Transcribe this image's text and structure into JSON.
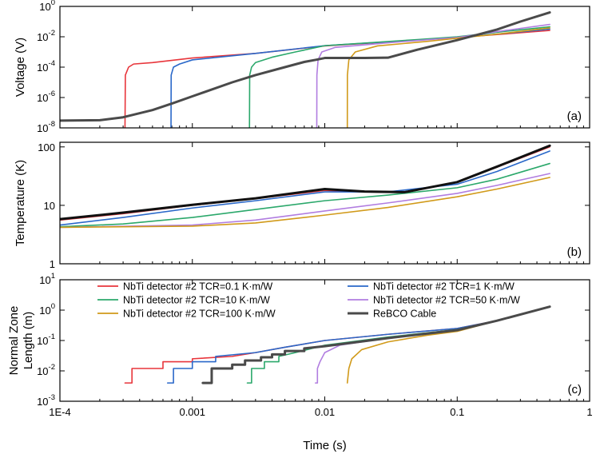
{
  "chart_data": [
    {
      "type": "line",
      "panel_tag": "(a)",
      "ylabel": "Voltage (V)",
      "xscale": "log",
      "yscale": "log",
      "xlim": [
        0.0001,
        1
      ],
      "ylim": [
        1e-08,
        1
      ],
      "yticks": [
        {
          "base": "10",
          "exp": "0"
        },
        {
          "base": "10",
          "exp": "-2"
        },
        {
          "base": "10",
          "exp": "-4"
        },
        {
          "base": "10",
          "exp": "-6"
        },
        {
          "base": "10",
          "exp": "-8"
        }
      ],
      "series": [
        {
          "name": "NbTi detector #2 TCR=0.1 K·m/W",
          "color": "#e8353b",
          "points": [
            [
              0.00031,
              1e-08
            ],
            [
              0.000312,
              3e-05
            ],
            [
              0.00033,
              0.0001
            ],
            [
              0.00036,
              0.00016
            ],
            [
              0.0005,
              0.0002
            ],
            [
              0.001,
              0.0004
            ],
            [
              0.003,
              0.0008
            ],
            [
              0.01,
              0.0025
            ],
            [
              0.05,
              0.006
            ],
            [
              0.1,
              0.009
            ],
            [
              0.2,
              0.014
            ],
            [
              0.5,
              0.026
            ]
          ]
        },
        {
          "name": "NbTi detector #2 TCR=1 K·m/W",
          "color": "#2a68c9",
          "points": [
            [
              0.00069,
              1e-08
            ],
            [
              0.000692,
              3e-05
            ],
            [
              0.00072,
              0.0001
            ],
            [
              0.0008,
              0.00016
            ],
            [
              0.001,
              0.0003
            ],
            [
              0.003,
              0.0008
            ],
            [
              0.01,
              0.0026
            ],
            [
              0.05,
              0.0062
            ],
            [
              0.1,
              0.009
            ],
            [
              0.2,
              0.015
            ],
            [
              0.5,
              0.032
            ]
          ]
        },
        {
          "name": "NbTi detector #2 TCR=10 K·m/W",
          "color": "#2ba86b",
          "points": [
            [
              0.0027,
              1e-08
            ],
            [
              0.00271,
              3e-05
            ],
            [
              0.0028,
              0.0001
            ],
            [
              0.003,
              0.0002
            ],
            [
              0.004,
              0.00045
            ],
            [
              0.006,
              0.001
            ],
            [
              0.01,
              0.0026
            ],
            [
              0.05,
              0.0065
            ],
            [
              0.1,
              0.01
            ],
            [
              0.2,
              0.02
            ],
            [
              0.5,
              0.045
            ]
          ]
        },
        {
          "name": "NbTi detector #2 TCR=50 K·m/W",
          "color": "#b17de0",
          "points": [
            [
              0.0087,
              1e-08
            ],
            [
              0.00872,
              3e-05
            ],
            [
              0.0089,
              0.0003
            ],
            [
              0.0095,
              0.001
            ],
            [
              0.012,
              0.002
            ],
            [
              0.03,
              0.004
            ],
            [
              0.1,
              0.009
            ],
            [
              0.2,
              0.022
            ],
            [
              0.5,
              0.065
            ]
          ]
        },
        {
          "name": "NbTi detector #2 TCR=100 K·m/W",
          "color": "#d19a1a",
          "points": [
            [
              0.0148,
              1e-08
            ],
            [
              0.01482,
              3e-05
            ],
            [
              0.0152,
              0.0003
            ],
            [
              0.017,
              0.001
            ],
            [
              0.025,
              0.0025
            ],
            [
              0.06,
              0.005
            ],
            [
              0.1,
              0.008
            ],
            [
              0.2,
              0.015
            ],
            [
              0.5,
              0.038
            ]
          ]
        },
        {
          "name": "ReBCO Cable",
          "color": "#4a4a4a",
          "points": [
            [
              0.0001,
              3e-08
            ],
            [
              0.0002,
              3.2e-08
            ],
            [
              0.0003,
              5e-08
            ],
            [
              0.0005,
              1.5e-07
            ],
            [
              0.0007,
              4e-07
            ],
            [
              0.001,
              1.2e-06
            ],
            [
              0.002,
              1e-05
            ],
            [
              0.003,
              3e-05
            ],
            [
              0.005,
              0.0001
            ],
            [
              0.007,
              0.00022
            ],
            [
              0.0085,
              0.0003
            ],
            [
              0.01,
              0.0004
            ],
            [
              0.02,
              0.0004
            ],
            [
              0.03,
              0.00042
            ],
            [
              0.05,
              0.0014
            ],
            [
              0.1,
              0.006
            ],
            [
              0.2,
              0.03
            ],
            [
              0.3,
              0.1
            ],
            [
              0.5,
              0.4
            ]
          ]
        }
      ]
    },
    {
      "type": "line",
      "panel_tag": "(b)",
      "ylabel": "Temperature (K)",
      "xscale": "log",
      "yscale": "log",
      "xlim": [
        0.0001,
        1
      ],
      "ylim": [
        1,
        120
      ],
      "yticks": [
        {
          "base": "100",
          "exp": ""
        },
        {
          "base": "10",
          "exp": ""
        },
        {
          "base": "1",
          "exp": ""
        }
      ],
      "series": [
        {
          "name": "NbTi detector #2 TCR=0.1 K·m/W",
          "color": "#e8353b",
          "points": [
            [
              0.0001,
              5.6
            ],
            [
              0.0003,
              7.2
            ],
            [
              0.001,
              10
            ],
            [
              0.003,
              13
            ],
            [
              0.01,
              18
            ],
            [
              0.02,
              17
            ],
            [
              0.04,
              16.5
            ],
            [
              0.1,
              25
            ],
            [
              0.2,
              45
            ],
            [
              0.5,
              100
            ]
          ]
        },
        {
          "name": "NbTi detector #2 TCR=1 K·m/W",
          "color": "#2a68c9",
          "points": [
            [
              0.0001,
              4.6
            ],
            [
              0.0003,
              6.2
            ],
            [
              0.001,
              9
            ],
            [
              0.003,
              12
            ],
            [
              0.01,
              17
            ],
            [
              0.03,
              17
            ],
            [
              0.1,
              23
            ],
            [
              0.2,
              38
            ],
            [
              0.5,
              85
            ]
          ]
        },
        {
          "name": "NbTi detector #2 TCR=10 K·m/W",
          "color": "#2ba86b",
          "points": [
            [
              0.0001,
              4.3
            ],
            [
              0.0003,
              4.8
            ],
            [
              0.001,
              6.2
            ],
            [
              0.003,
              8.5
            ],
            [
              0.01,
              12
            ],
            [
              0.03,
              15
            ],
            [
              0.1,
              20
            ],
            [
              0.2,
              28
            ],
            [
              0.5,
              52
            ]
          ]
        },
        {
          "name": "NbTi detector #2 TCR=50 K·m/W",
          "color": "#b17de0",
          "points": [
            [
              0.0001,
              4.2
            ],
            [
              0.001,
              4.6
            ],
            [
              0.003,
              5.6
            ],
            [
              0.01,
              8
            ],
            [
              0.03,
              11
            ],
            [
              0.1,
              16
            ],
            [
              0.2,
              22
            ],
            [
              0.5,
              35
            ]
          ]
        },
        {
          "name": "NbTi detector #2 TCR=100 K·m/W",
          "color": "#d19a1a",
          "points": [
            [
              0.0001,
              4.2
            ],
            [
              0.001,
              4.4
            ],
            [
              0.003,
              5
            ],
            [
              0.01,
              6.8
            ],
            [
              0.03,
              9.2
            ],
            [
              0.1,
              14
            ],
            [
              0.2,
              19
            ],
            [
              0.5,
              30
            ]
          ]
        },
        {
          "name": "ReBCO Cable",
          "color": "#111111",
          "points": [
            [
              0.0001,
              5.8
            ],
            [
              0.0003,
              7.5
            ],
            [
              0.001,
              10.2
            ],
            [
              0.003,
              13.2
            ],
            [
              0.01,
              19
            ],
            [
              0.02,
              17.2
            ],
            [
              0.04,
              16.8
            ],
            [
              0.1,
              25
            ],
            [
              0.2,
              46
            ],
            [
              0.5,
              105
            ]
          ]
        }
      ]
    },
    {
      "type": "line",
      "panel_tag": "(c)",
      "ylabel": [
        "Normal Zone",
        "Length (m)"
      ],
      "xlabel": "Time (s)",
      "xscale": "log",
      "yscale": "log",
      "xlim": [
        0.0001,
        1
      ],
      "ylim": [
        0.001,
        10
      ],
      "xticks": [
        "1E-4",
        "0.001",
        "0.01",
        "0.1",
        "1"
      ],
      "yticks": [
        {
          "base": "10",
          "exp": "1"
        },
        {
          "base": "10",
          "exp": "0"
        },
        {
          "base": "10",
          "exp": "-1"
        },
        {
          "base": "10",
          "exp": "-2"
        },
        {
          "base": "10",
          "exp": "-3"
        }
      ],
      "series": [
        {
          "name": "NbTi detector #2 TCR=0.1 K·m/W",
          "color": "#e8353b",
          "points": [
            [
              0.00031,
              0.004
            ],
            [
              0.00035,
              0.004
            ],
            [
              0.00035,
              0.012
            ],
            [
              0.0006,
              0.012
            ],
            [
              0.0006,
              0.02
            ],
            [
              0.001,
              0.02
            ],
            [
              0.001,
              0.025
            ],
            [
              0.002,
              0.03
            ],
            [
              0.003,
              0.04
            ],
            [
              0.005,
              0.06
            ],
            [
              0.01,
              0.1
            ],
            [
              0.03,
              0.16
            ],
            [
              0.1,
              0.25
            ],
            [
              0.2,
              0.45
            ],
            [
              0.5,
              1.3
            ]
          ]
        },
        {
          "name": "NbTi detector #2 TCR=1 K·m/W",
          "color": "#2a68c9",
          "points": [
            [
              0.00065,
              0.004
            ],
            [
              0.00072,
              0.004
            ],
            [
              0.00072,
              0.012
            ],
            [
              0.001,
              0.012
            ],
            [
              0.001,
              0.02
            ],
            [
              0.0015,
              0.02
            ],
            [
              0.0015,
              0.03
            ],
            [
              0.003,
              0.04
            ],
            [
              0.005,
              0.06
            ],
            [
              0.01,
              0.1
            ],
            [
              0.03,
              0.16
            ],
            [
              0.1,
              0.25
            ],
            [
              0.2,
              0.45
            ],
            [
              0.5,
              1.3
            ]
          ]
        },
        {
          "name": "NbTi detector #2 TCR=10 K·m/W",
          "color": "#2ba86b",
          "points": [
            [
              0.0026,
              0.004
            ],
            [
              0.0028,
              0.004
            ],
            [
              0.0028,
              0.012
            ],
            [
              0.0035,
              0.012
            ],
            [
              0.0035,
              0.02
            ],
            [
              0.0045,
              0.02
            ],
            [
              0.0045,
              0.03
            ],
            [
              0.006,
              0.04
            ],
            [
              0.01,
              0.07
            ],
            [
              0.03,
              0.13
            ],
            [
              0.1,
              0.23
            ],
            [
              0.2,
              0.45
            ],
            [
              0.5,
              1.3
            ]
          ]
        },
        {
          "name": "NbTi detector #2 TCR=50 K·m/W",
          "color": "#b17de0",
          "points": [
            [
              0.0085,
              0.004
            ],
            [
              0.0088,
              0.004
            ],
            [
              0.0088,
              0.012
            ],
            [
              0.0092,
              0.02
            ],
            [
              0.01,
              0.04
            ],
            [
              0.013,
              0.07
            ],
            [
              0.03,
              0.12
            ],
            [
              0.1,
              0.22
            ],
            [
              0.2,
              0.45
            ],
            [
              0.5,
              1.3
            ]
          ]
        },
        {
          "name": "NbTi detector #2 TCR=100 K·m/W",
          "color": "#d19a1a",
          "points": [
            [
              0.0148,
              0.004
            ],
            [
              0.0152,
              0.012
            ],
            [
              0.016,
              0.025
            ],
            [
              0.019,
              0.05
            ],
            [
              0.03,
              0.09
            ],
            [
              0.06,
              0.15
            ],
            [
              0.1,
              0.2
            ],
            [
              0.2,
              0.45
            ],
            [
              0.5,
              1.3
            ]
          ]
        },
        {
          "name": "ReBCO Cable",
          "color": "#4a4a4a",
          "points": [
            [
              0.0012,
              0.004
            ],
            [
              0.0014,
              0.004
            ],
            [
              0.0014,
              0.012
            ],
            [
              0.002,
              0.012
            ],
            [
              0.002,
              0.016
            ],
            [
              0.0025,
              0.016
            ],
            [
              0.0025,
              0.022
            ],
            [
              0.0033,
              0.022
            ],
            [
              0.0033,
              0.028
            ],
            [
              0.004,
              0.028
            ],
            [
              0.004,
              0.035
            ],
            [
              0.005,
              0.035
            ],
            [
              0.005,
              0.045
            ],
            [
              0.007,
              0.045
            ],
            [
              0.007,
              0.055
            ],
            [
              0.01,
              0.065
            ],
            [
              0.03,
              0.12
            ],
            [
              0.1,
              0.22
            ],
            [
              0.2,
              0.45
            ],
            [
              0.5,
              1.3
            ]
          ]
        }
      ]
    }
  ],
  "legend": {
    "location": "top of panel (c)",
    "entries": [
      {
        "label": "NbTi detector #2 TCR=0.1 K·m/W",
        "color": "#e8353b"
      },
      {
        "label": "NbTi detector #2 TCR=1 K·m/W",
        "color": "#2a68c9"
      },
      {
        "label": "NbTi detector #2 TCR=10 K·m/W",
        "color": "#2ba86b"
      },
      {
        "label": "NbTi detector #2 TCR=50 K·m/W",
        "color": "#b17de0"
      },
      {
        "label": "NbTi detector #2 TCR=100 K·m/W",
        "color": "#d19a1a"
      },
      {
        "label": "ReBCO Cable",
        "color": "#4a4a4a"
      }
    ]
  }
}
